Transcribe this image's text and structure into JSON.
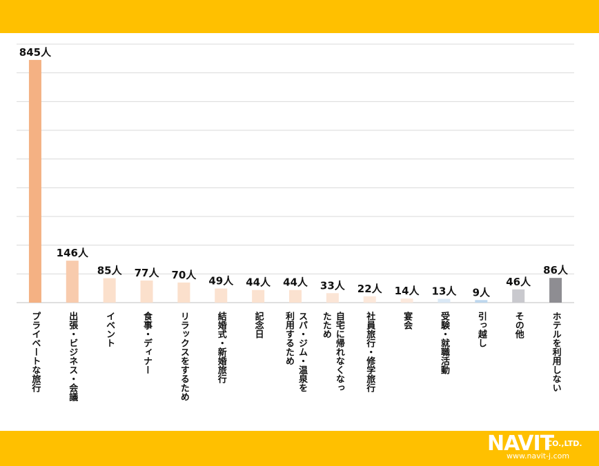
{
  "chart_data": {
    "type": "bar",
    "categories": [
      "プライベートな旅行",
      "出張・ビジネス・会議",
      "イベント",
      "食事・ディナー",
      "リラックスをするため",
      "結婚式・新婚旅行",
      "記念日",
      "スパ・ジム・温泉を\n利用するため",
      "自宅に帰れなくなっ\nたため",
      "社員旅行・修学旅行",
      "宴会",
      "受験・就職活動",
      "引っ越し",
      "その他",
      "ホテルを利用しない"
    ],
    "values": [
      845,
      146,
      85,
      77,
      70,
      49,
      44,
      44,
      33,
      22,
      14,
      13,
      9,
      46,
      86
    ],
    "value_labels": [
      "845人",
      "146人",
      "85人",
      "77人",
      "70人",
      "49人",
      "44人",
      "44人",
      "33人",
      "22人",
      "14人",
      "13人",
      "9人",
      "46人",
      "86人"
    ],
    "colors": [
      "#F4B183",
      "#F8CBAD",
      "#FBE0CC",
      "#FBE0CC",
      "#FBE0CC",
      "#FBE2D0",
      "#FBE2D0",
      "#FBE2D0",
      "#FBE5D6",
      "#FCE8DA",
      "#FCE9DD",
      "#DAE8F5",
      "#BDD7EE",
      "#C9C9CE",
      "#8E8D92"
    ],
    "ylim": [
      0,
      900
    ],
    "grid": true,
    "gridline_count": 9,
    "legend": "none"
  },
  "branding": {
    "logo_main": "NAVIT",
    "logo_company": "CO.,LTD.",
    "logo_url": "www.navit-j.com"
  }
}
